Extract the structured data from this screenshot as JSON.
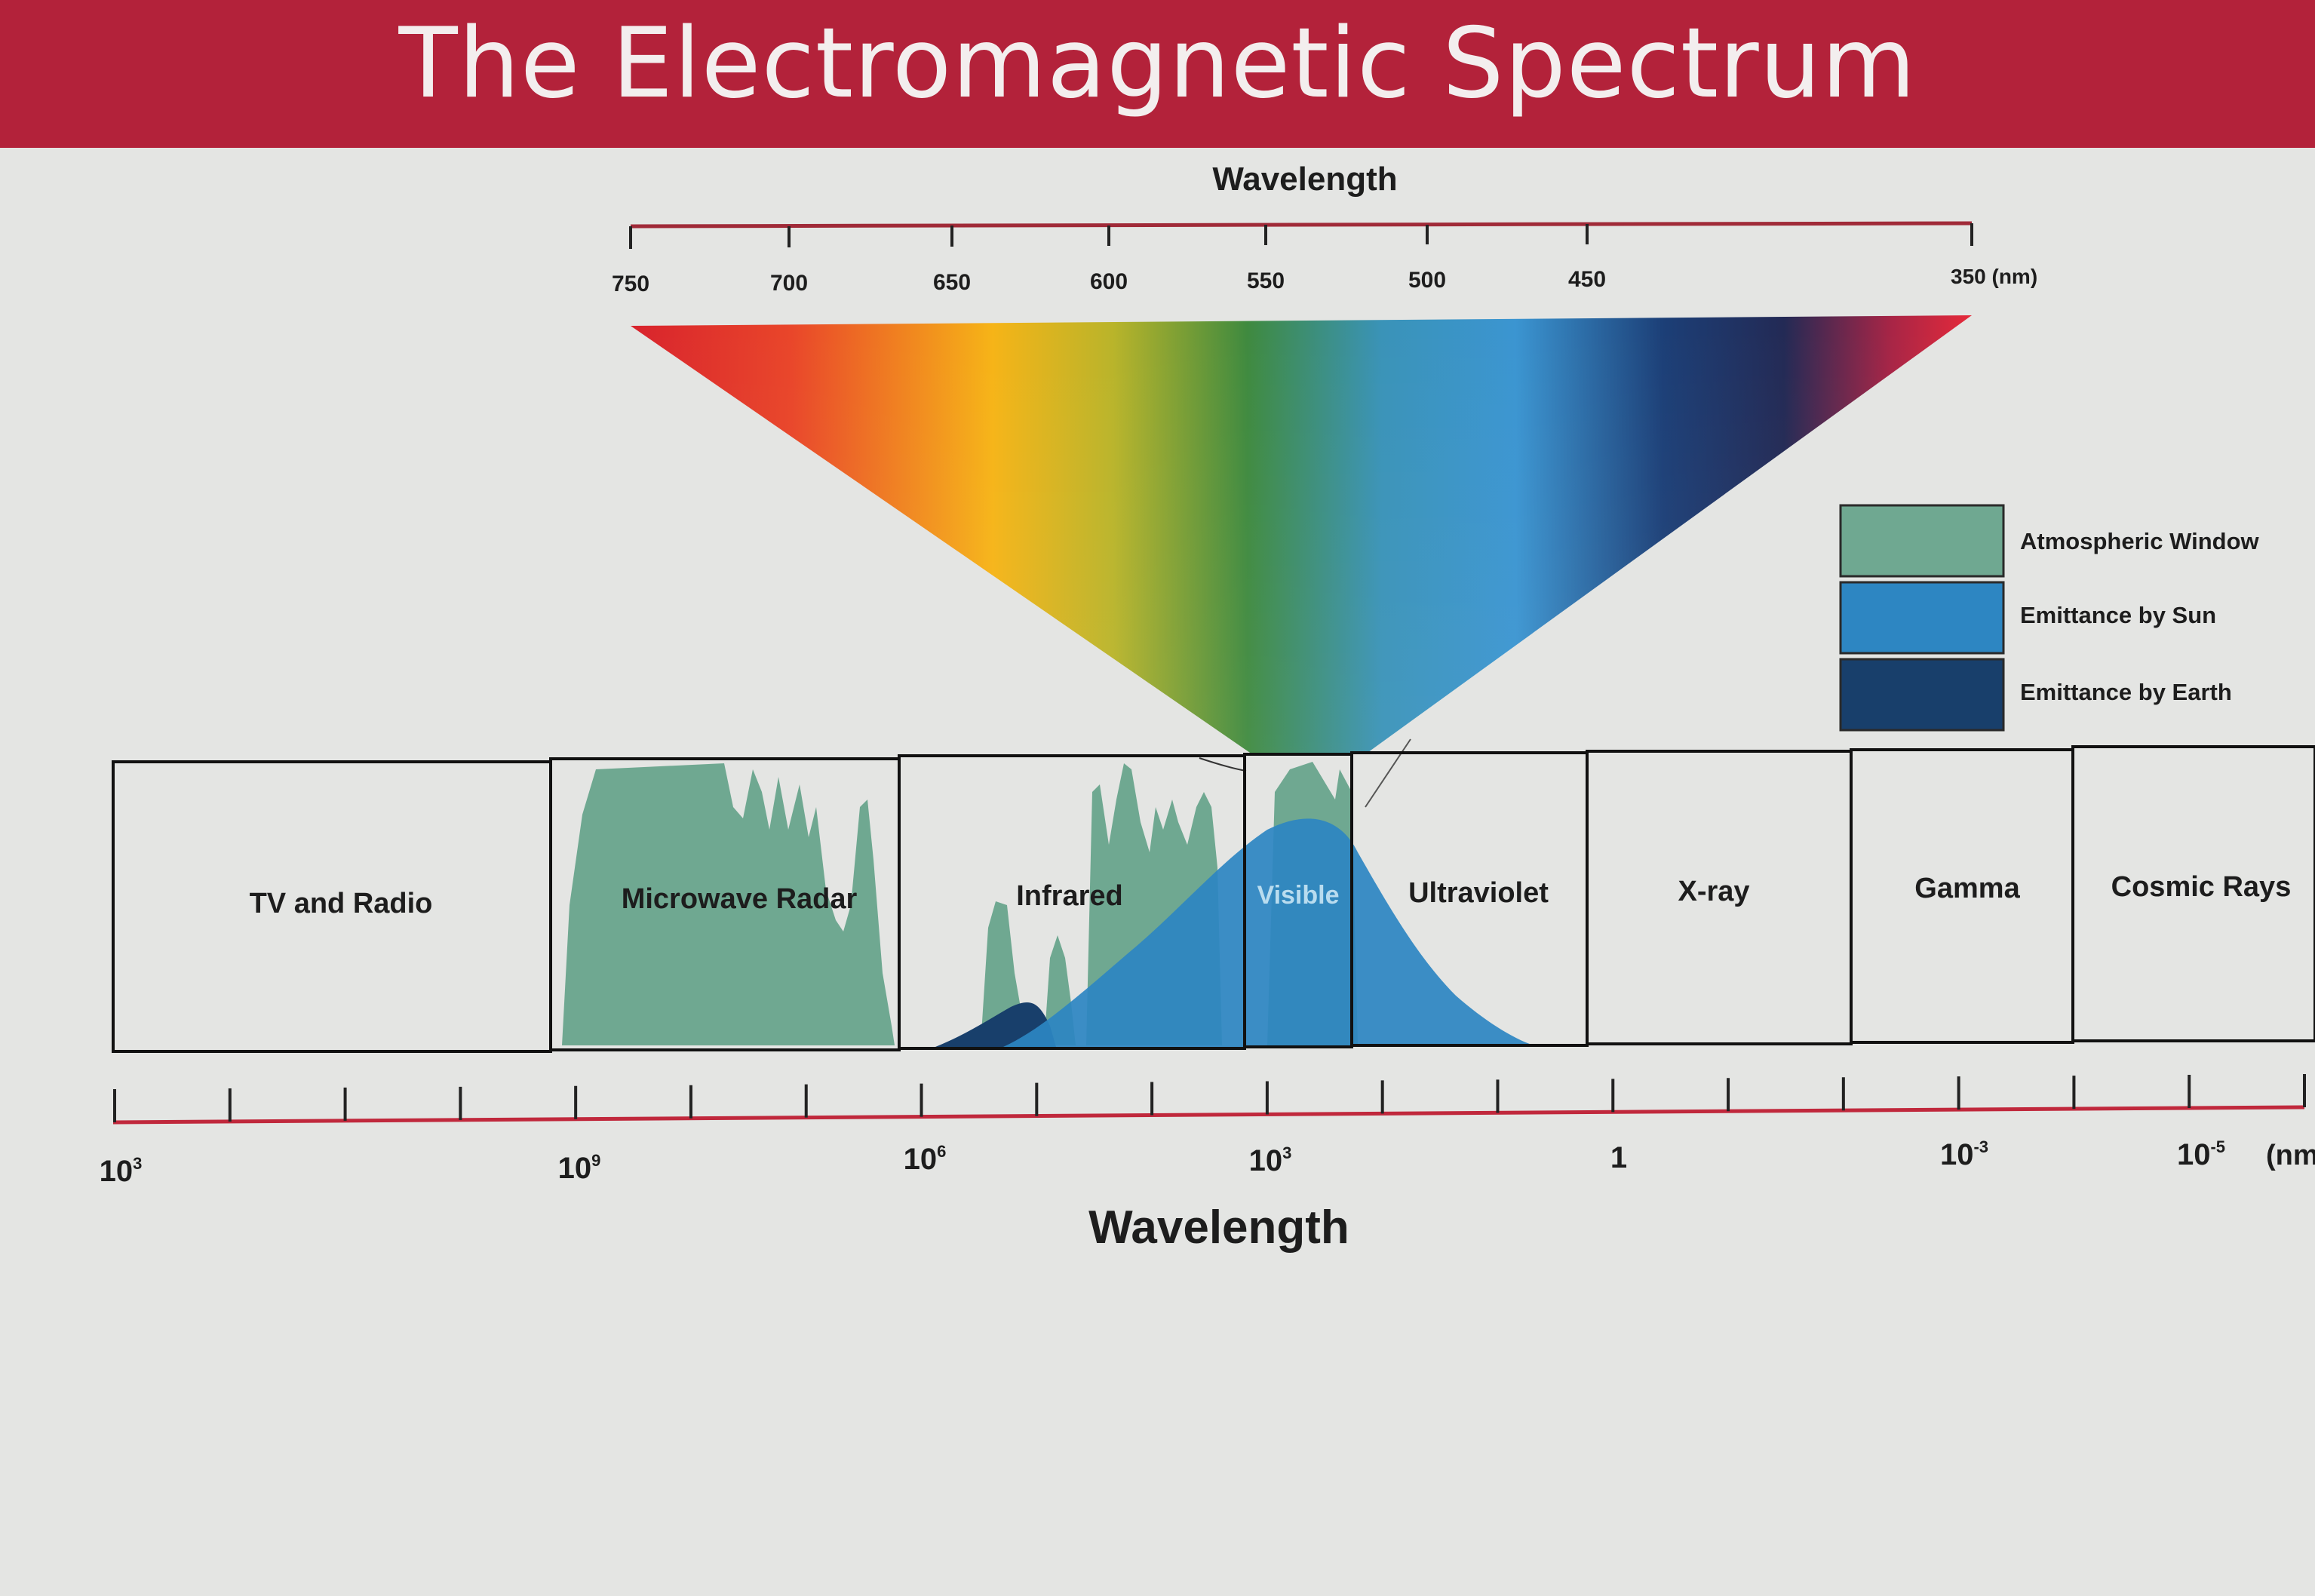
{
  "title": "The Electromagnetic Spectrum",
  "visible_scale": {
    "title": "Wavelength",
    "ticks": [
      "750",
      "700",
      "650",
      "600",
      "550",
      "500",
      "450"
    ],
    "end_label": "350 (nm)"
  },
  "legend": [
    {
      "label": "Atmospheric Window",
      "color": "#6fa891"
    },
    {
      "label": "Emittance by Sun",
      "color": "#2d86c2"
    },
    {
      "label": "Emittance by Earth",
      "color": "#183f6b"
    }
  ],
  "bands": [
    {
      "label": "TV and Radio"
    },
    {
      "label": "Microwave Radar"
    },
    {
      "label": "Infrared"
    },
    {
      "label": "Visible"
    },
    {
      "label": "Ultraviolet"
    },
    {
      "label": "X-ray"
    },
    {
      "label": "Gamma"
    },
    {
      "label": "Cosmic Rays"
    }
  ],
  "axis": {
    "title": "Wavelength",
    "labels": [
      {
        "base": "10",
        "exp": "3"
      },
      {
        "base": "10",
        "exp": "9"
      },
      {
        "base": "10",
        "exp": "6"
      },
      {
        "base": "10",
        "exp": "3"
      },
      {
        "base": "1",
        "exp": ""
      },
      {
        "base": "10",
        "exp": "-3"
      },
      {
        "base": "10",
        "exp": "-5"
      }
    ],
    "unit": "(nm"
  },
  "colors": {
    "banner": "#b3223a",
    "atmospheric_window": "#6fa891",
    "emittance_sun": "#2d86c2",
    "emittance_earth": "#183f6b",
    "axis_line": "#c0283c"
  }
}
